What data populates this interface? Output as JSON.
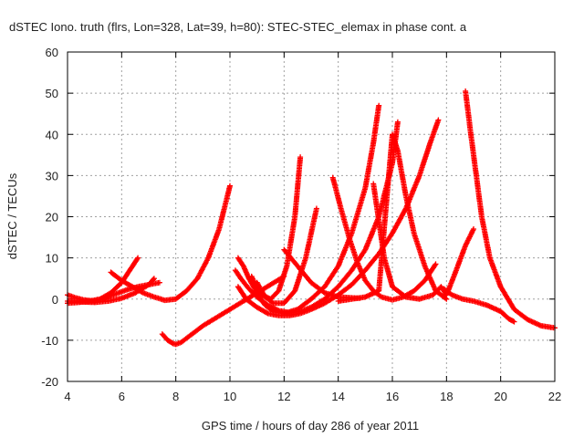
{
  "chart_data": {
    "type": "scatter",
    "title": "dSTEC Iono. truth (flrs, Lon=328, Lat=39, h=80): STEC-STEC_elemax in phase cont. a",
    "xlabel": "GPS time / hours of day 286 of year 2011",
    "ylabel": "dSTEC  / TECUs",
    "xlim": [
      4,
      22
    ],
    "ylim": [
      -20,
      60
    ],
    "x_ticks": [
      4,
      6,
      8,
      10,
      12,
      14,
      16,
      18,
      20,
      22
    ],
    "y_ticks": [
      -20,
      -10,
      0,
      10,
      20,
      30,
      40,
      50,
      60
    ],
    "x_tick_labels": [
      "4",
      "6",
      "8",
      "10",
      "12",
      "14",
      "16",
      "18",
      "20",
      "22"
    ],
    "y_tick_labels": [
      "-20",
      "-10",
      "0",
      "10",
      "20",
      "30",
      "40",
      "50",
      "60"
    ],
    "grid": true,
    "marker": "plus",
    "color": "#ff0000",
    "series": [
      {
        "x": [
          4.0,
          4.3,
          4.6,
          5.0,
          5.3,
          5.6,
          6.0,
          6.3,
          6.6,
          7.0,
          7.4
        ],
        "y": [
          1,
          0.3,
          -0.2,
          -0.5,
          0,
          0.8,
          1.8,
          2.5,
          3,
          3.5,
          4
        ]
      },
      {
        "x": [
          4.0,
          4.4,
          4.8,
          5.2,
          5.6,
          6.0,
          6.3,
          6.6
        ],
        "y": [
          -1,
          -0.8,
          -0.5,
          0,
          1.5,
          4,
          7,
          10
        ]
      },
      {
        "x": [
          4.0,
          4.3,
          4.6,
          5.0,
          5.5,
          6.0,
          6.5,
          7.0,
          7.2
        ],
        "y": [
          -0.5,
          -0.5,
          -0.7,
          -0.8,
          -0.5,
          0.2,
          1.5,
          3.5,
          5
        ]
      },
      {
        "x": [
          5.6,
          6.0,
          6.4,
          6.8,
          7.2,
          7.6,
          8.0,
          8.4,
          8.8,
          9.2,
          9.6,
          10.0
        ],
        "y": [
          6.5,
          4.5,
          3,
          1.5,
          0.5,
          -0.3,
          0,
          2,
          5,
          10,
          17,
          27.5
        ]
      },
      {
        "x": [
          7.5,
          7.7,
          7.9,
          8.0,
          8.2,
          8.5,
          9.0,
          9.5,
          10.0,
          10.5,
          11.0,
          11.5,
          12.0
        ],
        "y": [
          -8.5,
          -10,
          -10.8,
          -11,
          -10.5,
          -9,
          -6.5,
          -4.5,
          -2.5,
          -0.5,
          1.5,
          3.5,
          5.5
        ]
      },
      {
        "x": [
          10.3,
          10.5,
          10.7,
          11.0,
          11.3,
          11.6,
          12.0,
          12.5,
          13.0,
          13.5,
          14.0,
          14.5,
          15.0,
          15.3,
          15.5
        ],
        "y": [
          10,
          8,
          5,
          1.5,
          -1.5,
          -3,
          -3.5,
          -2.5,
          0,
          3,
          8,
          16,
          27,
          38,
          47
        ]
      },
      {
        "x": [
          10.2,
          10.4,
          10.7,
          11.0,
          11.4,
          11.8,
          12.2,
          12.6,
          13.0,
          13.5,
          14.0,
          14.5,
          15.0,
          15.5,
          16.0,
          16.2
        ],
        "y": [
          7,
          5,
          2.5,
          0.5,
          -1.5,
          -2.8,
          -3.3,
          -3,
          -2,
          0,
          3,
          7,
          12,
          20,
          33,
          43
        ]
      },
      {
        "x": [
          10.3,
          10.6,
          11.0,
          11.4,
          11.8,
          12.2,
          12.6,
          13.0,
          13.5,
          14.0,
          14.5,
          15.0,
          15.5,
          16.0,
          16.5,
          17.0,
          17.4,
          17.7
        ],
        "y": [
          3,
          0,
          -2,
          -3.5,
          -4,
          -4,
          -3.5,
          -2.5,
          -1,
          1,
          3.5,
          7,
          11,
          16,
          22,
          30,
          38,
          43.5
        ]
      },
      {
        "x": [
          10.8,
          11.0,
          11.2,
          11.5,
          11.8,
          12.1,
          12.4,
          12.6
        ],
        "y": [
          5.5,
          2.5,
          1,
          0,
          2,
          8,
          20,
          34.5
        ]
      },
      {
        "x": [
          11.0,
          11.3,
          11.6,
          12.0,
          12.4,
          12.8,
          13.2
        ],
        "y": [
          4,
          0.5,
          -1,
          -1,
          2,
          10,
          22
        ]
      },
      {
        "x": [
          12.0,
          12.5,
          13.0,
          13.5,
          14.0,
          14.5,
          14.8
        ],
        "y": [
          12,
          8,
          4,
          1.5,
          0.5,
          0.3,
          0.2
        ]
      },
      {
        "x": [
          13.8,
          14.1,
          14.4,
          14.7,
          15.0,
          15.3,
          15.6,
          16.0,
          16.4,
          16.8,
          17.2,
          17.6
        ],
        "y": [
          29.5,
          22,
          15,
          9,
          4.5,
          2,
          0.5,
          -0.2,
          0.5,
          2,
          4.5,
          8.5
        ]
      },
      {
        "x": [
          14.0,
          14.5,
          15.0,
          15.5,
          15.8,
          16.0,
          16.2,
          16.5,
          16.8,
          17.2,
          17.6,
          18.0
        ],
        "y": [
          -0.5,
          0,
          0.5,
          2,
          25,
          40,
          36,
          25,
          16,
          8,
          2,
          0
        ]
      },
      {
        "x": [
          15.3,
          15.7,
          16.0,
          16.5,
          17.0,
          17.5,
          17.8,
          18.0,
          18.3,
          18.7,
          19.0
        ],
        "y": [
          28,
          10,
          3,
          0.5,
          0,
          1,
          3,
          1,
          6,
          13,
          17
        ]
      },
      {
        "x": [
          17.9,
          18.2,
          18.6,
          19.0,
          19.5,
          20.0,
          20.3,
          20.5
        ],
        "y": [
          2.5,
          1,
          0,
          -0.5,
          -1.5,
          -3,
          -4.8,
          -5.5
        ]
      },
      {
        "x": [
          18.7,
          18.9,
          19.1,
          19.3,
          19.6,
          20.0,
          20.5,
          21.0,
          21.5,
          22.0
        ],
        "y": [
          50.5,
          40,
          30,
          20,
          10,
          3,
          -2.5,
          -5,
          -6.5,
          -7
        ]
      }
    ]
  }
}
